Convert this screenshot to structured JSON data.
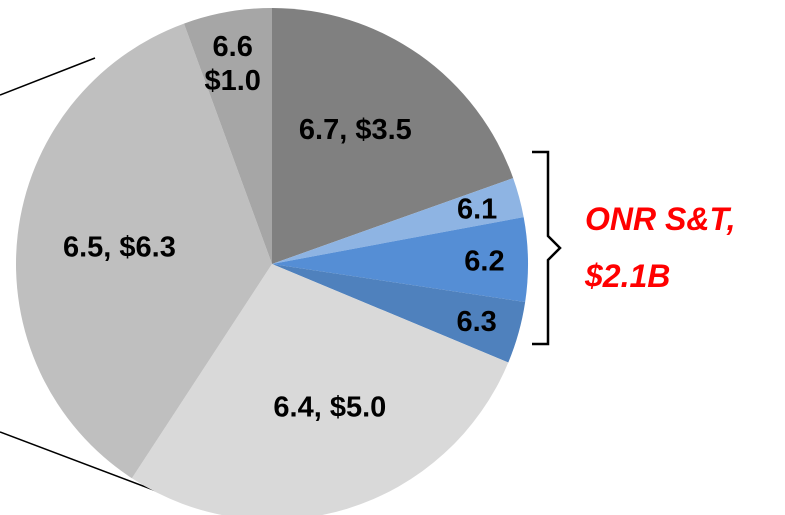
{
  "chart_data": {
    "type": "pie",
    "title": "",
    "slices": [
      {
        "label": "6.7,  $3.5",
        "category": "6.7",
        "value": 3.5,
        "color": "#808080"
      },
      {
        "label": "6.1",
        "category": "6.1",
        "value": 0.45,
        "color": "#8EB4E3"
      },
      {
        "label": "6.2",
        "category": "6.2",
        "value": 0.95,
        "color": "#558ED5"
      },
      {
        "label": "6.3",
        "category": "6.3",
        "value": 0.7,
        "color": "#4F81BD"
      },
      {
        "label": "6.4,  $5.0",
        "category": "6.4",
        "value": 5.0,
        "color": "#D9D9D9"
      },
      {
        "label": "6.5,  $6.3",
        "category": "6.5",
        "value": 6.3,
        "color": "#BFBFBF"
      },
      {
        "label": "6.6\n$1.0",
        "category": "6.6",
        "value": 1.0,
        "color": "#A6A6A6"
      }
    ],
    "callout": {
      "line1": "ONR S&T,",
      "line2": "$2.1B",
      "color": "#FF0000",
      "groups": [
        "6.1",
        "6.2",
        "6.3"
      ]
    },
    "legend": "none"
  }
}
